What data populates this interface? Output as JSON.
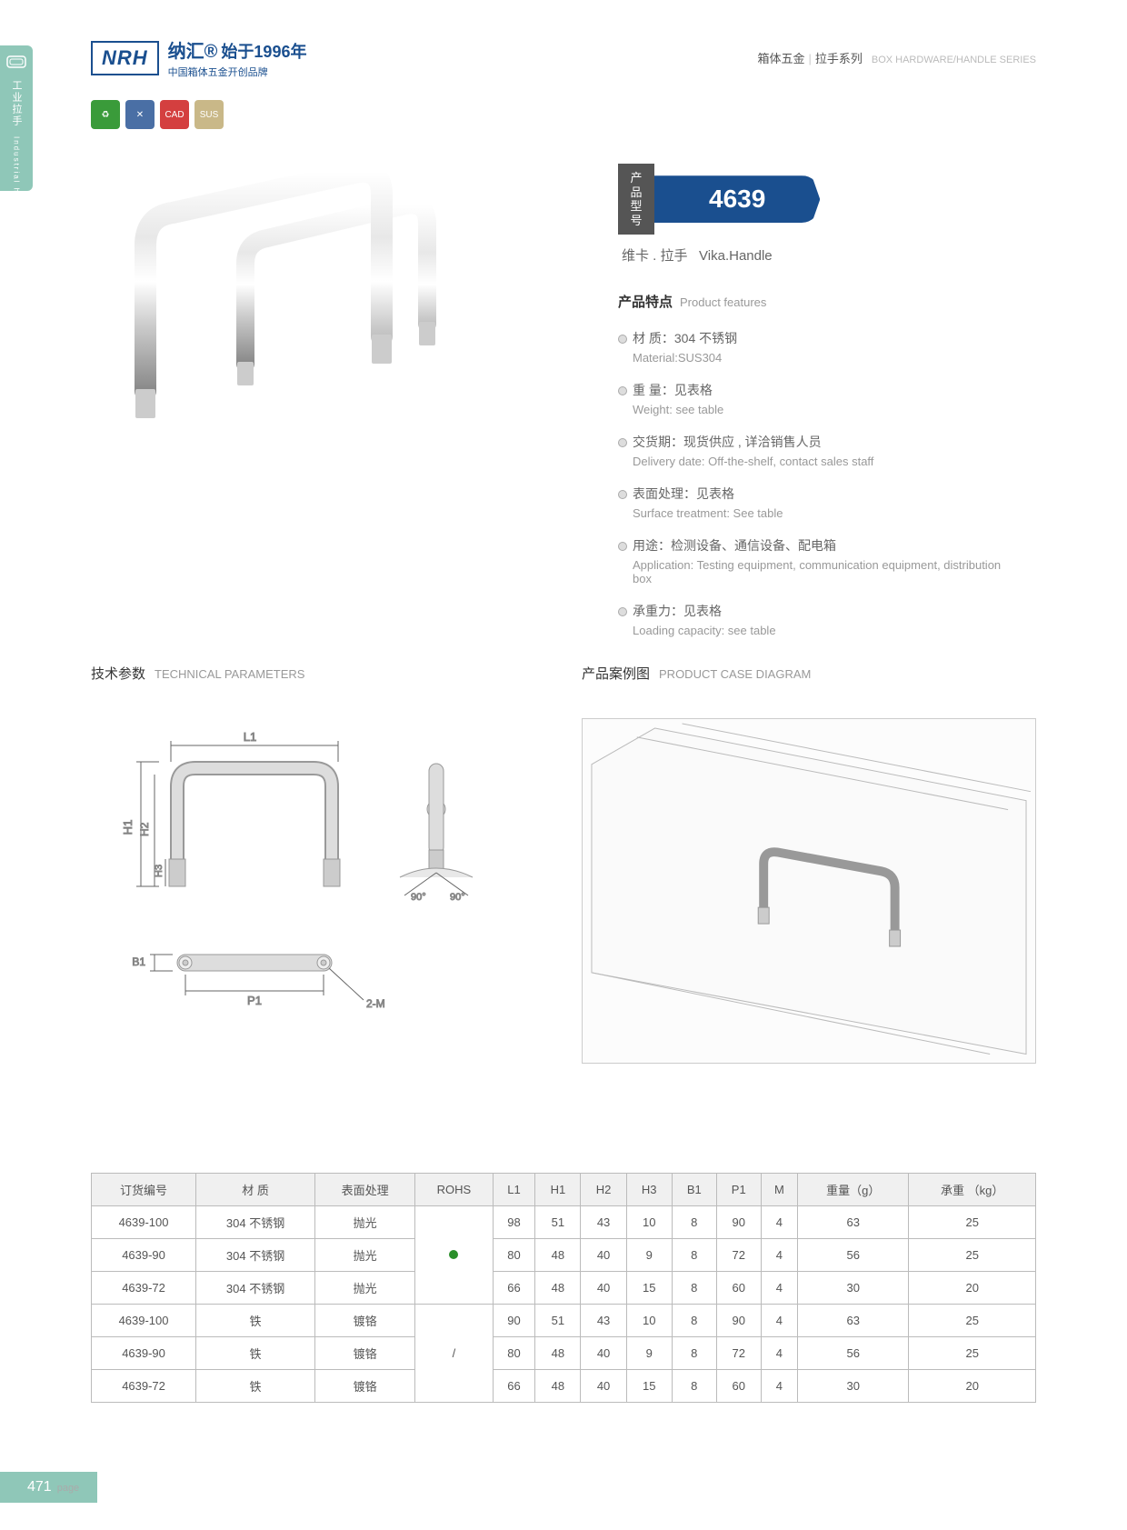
{
  "sideTab": {
    "cn": "工业拉手",
    "en": "Industrial handle"
  },
  "header": {
    "logoBadge": "NRH",
    "logoCn": "纳汇®",
    "logoYear": "始于1996年",
    "logoSub": "中国箱体五金开创品牌",
    "catCn": "箱体五金",
    "catSub": "拉手系列",
    "catEn": "BOX HARDWARE/HANDLE SERIES"
  },
  "model": {
    "labelCn": "产品型号",
    "number": "4639",
    "nameCn": "维卡 . 拉手",
    "nameEn": "Vika.Handle"
  },
  "featuresTitle": {
    "cn": "产品特点",
    "en": "Product features"
  },
  "features": [
    {
      "cn": "材 质：304 不锈钢",
      "en": "Material:SUS304"
    },
    {
      "cn": "重 量：见表格",
      "en": "Weight: see table"
    },
    {
      "cn": "交货期：现货供应 , 详洽销售人员",
      "en": "Delivery date: Off-the-shelf, contact sales staff"
    },
    {
      "cn": "表面处理：见表格",
      "en": "Surface treatment: See table"
    },
    {
      "cn": "用途：检测设备、通信设备、配电箱",
      "en": "Application: Testing equipment, communication equipment, distribution box"
    },
    {
      "cn": "承重力：见表格",
      "en": "Loading capacity: see table"
    }
  ],
  "sections": {
    "tech": {
      "cn": "技术参数",
      "en": "TECHNICAL PARAMETERS"
    },
    "case": {
      "cn": "产品案例图",
      "en": "PRODUCT CASE DIAGRAM"
    }
  },
  "diagram": {
    "L1": "L1",
    "H1": "H1",
    "H2": "H2",
    "H3": "H3",
    "B1": "B1",
    "P1": "P1",
    "M": "2-M",
    "a90a": "90°",
    "a90b": "90°"
  },
  "table": {
    "headers": [
      "订货编号",
      "材 质",
      "表面处理",
      "ROHS",
      "L1",
      "H1",
      "H2",
      "H3",
      "B1",
      "P1",
      "M",
      "重量（g）",
      "承重 （kg）"
    ],
    "rows": [
      [
        "4639-100",
        "304 不锈钢",
        "抛光",
        "dot",
        "98",
        "51",
        "43",
        "10",
        "8",
        "90",
        "4",
        "63",
        "25"
      ],
      [
        "4639-90",
        "304 不锈钢",
        "抛光",
        "",
        "80",
        "48",
        "40",
        "9",
        "8",
        "72",
        "4",
        "56",
        "25"
      ],
      [
        "4639-72",
        "304 不锈钢",
        "抛光",
        "",
        "66",
        "48",
        "40",
        "15",
        "8",
        "60",
        "4",
        "30",
        "20"
      ],
      [
        "4639-100",
        "铁",
        "镀铬",
        "slash",
        "90",
        "51",
        "43",
        "10",
        "8",
        "90",
        "4",
        "63",
        "25"
      ],
      [
        "4639-90",
        "铁",
        "镀铬",
        "",
        "80",
        "48",
        "40",
        "9",
        "8",
        "72",
        "4",
        "56",
        "25"
      ],
      [
        "4639-72",
        "铁",
        "镀铬",
        "",
        "66",
        "48",
        "40",
        "15",
        "8",
        "60",
        "4",
        "30",
        "20"
      ]
    ]
  },
  "pageNum": "471",
  "pageLabel": "page",
  "colors": {
    "brand": "#1a4f8f",
    "accent": "#8fc7b8"
  }
}
